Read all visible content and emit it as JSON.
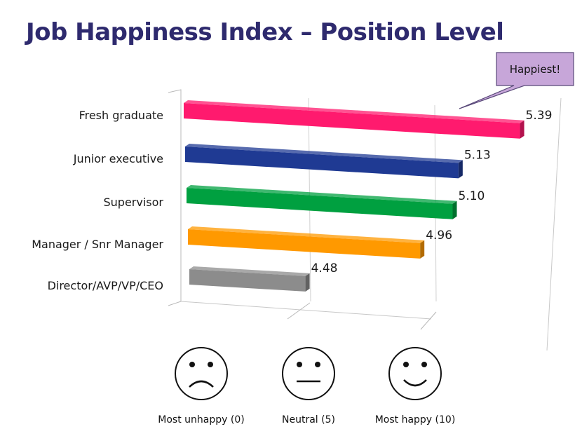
{
  "title": "Job Happiness Index – Position Level",
  "callout": "Happiest!",
  "chart_data": {
    "type": "bar",
    "orientation": "horizontal",
    "title": "Job Happiness Index – Position Level",
    "categories": [
      "Fresh graduate",
      "Junior executive",
      "Supervisor",
      "Manager / Snr Manager",
      "Director/AVP/VP/CEO"
    ],
    "values": [
      5.39,
      5.13,
      5.1,
      4.96,
      4.48
    ],
    "value_labels": [
      "5.39",
      "5.13",
      "5.10",
      "4.96",
      "4.48"
    ],
    "colors": [
      "#ff1a6e",
      "#1f3a93",
      "#00a040",
      "#ff9900",
      "#8c8c8c"
    ],
    "xlim": [
      4,
      5.39
    ],
    "grid": true,
    "legend": "none",
    "scale_faces": [
      {
        "icon": "sad-face-icon",
        "label": "Most unhappy (0)"
      },
      {
        "icon": "neutral-face-icon",
        "label": "Neutral (5)"
      },
      {
        "icon": "happy-face-icon",
        "label": "Most happy (10)"
      }
    ]
  }
}
